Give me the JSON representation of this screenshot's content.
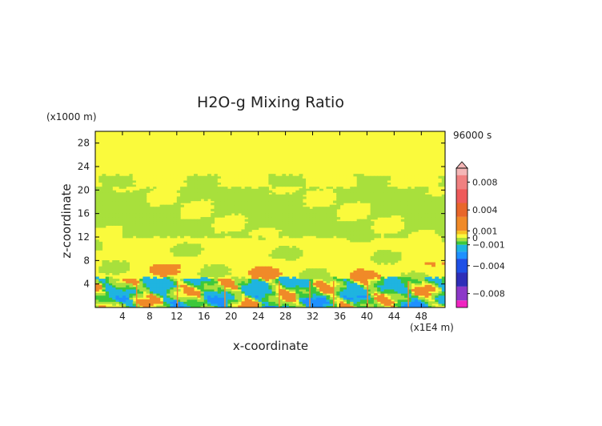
{
  "chart_data": {
    "type": "heatmap",
    "title": "H2O-g Mixing Ratio",
    "xlabel": "x-coordinate",
    "ylabel": "z-coordinate",
    "x_unit": "(x1E4 m)",
    "y_unit": "(x1000 m)",
    "time_label": "96000 s",
    "xlim": [
      0,
      51.5
    ],
    "ylim": [
      0,
      30
    ],
    "x_ticks": [
      "4",
      "8",
      "12",
      "16",
      "20",
      "24",
      "28",
      "32",
      "36",
      "40",
      "44",
      "48"
    ],
    "y_ticks": [
      "4",
      "8",
      "12",
      "16",
      "20",
      "24",
      "28"
    ],
    "colorbar": {
      "range": [
        -0.01,
        0.01
      ],
      "tick_labels": [
        {
          "value": 0.008,
          "label": "0.008"
        },
        {
          "value": 0.004,
          "label": "0.004"
        },
        {
          "value": 0.001,
          "label": "0.001"
        },
        {
          "value": 0,
          "label": "0"
        },
        {
          "value": -0.001,
          "label": "−0.001"
        },
        {
          "value": -0.004,
          "label": "−0.004"
        },
        {
          "value": -0.008,
          "label": "−0.008"
        }
      ],
      "bands": [
        {
          "from": 0.009,
          "to": 0.01,
          "color": "#f4b6b6"
        },
        {
          "from": 0.007,
          "to": 0.009,
          "color": "#f08080"
        },
        {
          "from": 0.005,
          "to": 0.007,
          "color": "#ee5a5a"
        },
        {
          "from": 0.003,
          "to": 0.005,
          "color": "#e8662a"
        },
        {
          "from": 0.001,
          "to": 0.003,
          "color": "#f08a28"
        },
        {
          "from": 0.0005,
          "to": 0.001,
          "color": "#f7c21e"
        },
        {
          "from": 0.0,
          "to": 0.0005,
          "color": "#fafa3c"
        },
        {
          "from": -0.0005,
          "to": 0.0,
          "color": "#a8e03c"
        },
        {
          "from": -0.001,
          "to": -0.0005,
          "color": "#3cc83c"
        },
        {
          "from": -0.002,
          "to": -0.001,
          "color": "#1fb4e0"
        },
        {
          "from": -0.003,
          "to": -0.002,
          "color": "#1e90ff"
        },
        {
          "from": -0.005,
          "to": -0.003,
          "color": "#1e50e6"
        },
        {
          "from": -0.007,
          "to": -0.005,
          "color": "#2e2eb8"
        },
        {
          "from": -0.009,
          "to": -0.007,
          "color": "#8c38c8"
        },
        {
          "from": -0.01,
          "to": -0.009,
          "color": "#f024c0"
        }
      ]
    },
    "field_bands": [
      {
        "z_from": 0,
        "z_to": 2,
        "dominant": "mixed blue/cyan/green/orange turbulence"
      },
      {
        "z_from": 2,
        "z_to": 5,
        "dominant": "cyan/orange swirling structures"
      },
      {
        "z_from": 5,
        "z_to": 12,
        "dominant": "yellow with green and orange patches"
      },
      {
        "z_from": 12,
        "z_to": 22,
        "dominant": "light green with yellow layers"
      },
      {
        "z_from": 22,
        "z_to": 30,
        "dominant": "yellow"
      }
    ]
  }
}
